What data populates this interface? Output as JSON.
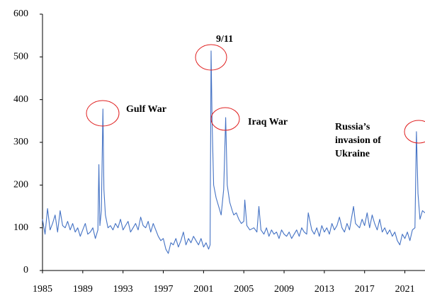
{
  "chart_data": {
    "type": "line",
    "x": [
      1985,
      1985.25,
      1985.5,
      1985.75,
      1986,
      1986.25,
      1986.5,
      1986.75,
      1987,
      1987.25,
      1987.5,
      1987.75,
      1988,
      1988.25,
      1988.5,
      1988.75,
      1989,
      1989.25,
      1989.5,
      1989.75,
      1990,
      1990.25,
      1990.5,
      1990.6,
      1990.7,
      1990.85,
      1991.0,
      1991.1,
      1991.25,
      1991.5,
      1991.75,
      1992,
      1992.25,
      1992.5,
      1992.75,
      1993,
      1993.25,
      1993.5,
      1993.75,
      1994,
      1994.25,
      1994.5,
      1994.75,
      1995,
      1995.25,
      1995.5,
      1995.75,
      1996,
      1996.25,
      1996.5,
      1996.75,
      1997,
      1997.25,
      1997.5,
      1997.75,
      1998,
      1998.25,
      1998.5,
      1998.75,
      1999,
      1999.25,
      1999.5,
      1999.75,
      2000,
      2000.25,
      2000.5,
      2000.75,
      2001,
      2001.25,
      2001.5,
      2001.65,
      2001.75,
      2001.85,
      2002,
      2002.25,
      2002.5,
      2002.75,
      2003,
      2003.2,
      2003.35,
      2003.6,
      2003.85,
      2004,
      2004.25,
      2004.5,
      2004.75,
      2005,
      2005.1,
      2005.3,
      2005.6,
      2006,
      2006.3,
      2006.5,
      2006.7,
      2007,
      2007.25,
      2007.5,
      2007.75,
      2008,
      2008.25,
      2008.5,
      2008.75,
      2009,
      2009.25,
      2009.5,
      2009.75,
      2010,
      2010.25,
      2010.5,
      2010.75,
      2011,
      2011.25,
      2011.4,
      2011.75,
      2012,
      2012.25,
      2012.5,
      2012.75,
      2013,
      2013.25,
      2013.5,
      2013.75,
      2014,
      2014.25,
      2014.5,
      2014.75,
      2015,
      2015.25,
      2015.5,
      2015.9,
      2016.1,
      2016.5,
      2016.75,
      2017,
      2017.25,
      2017.5,
      2017.75,
      2018,
      2018.25,
      2018.5,
      2018.75,
      2019,
      2019.25,
      2019.5,
      2019.75,
      2020,
      2020.25,
      2020.5,
      2020.75,
      2021,
      2021.25,
      2021.5,
      2021.75,
      2022,
      2022.15,
      2022.3,
      2022.5,
      2022.75,
      2023
    ],
    "series": [
      {
        "color": "#4472c4",
        "values": [
          120,
          85,
          145,
          95,
          110,
          130,
          90,
          140,
          105,
          100,
          115,
          95,
          110,
          90,
          100,
          80,
          95,
          110,
          85,
          90,
          100,
          75,
          95,
          248,
          105,
          140,
          378,
          190,
          130,
          100,
          105,
          95,
          110,
          100,
          120,
          95,
          105,
          115,
          90,
          100,
          110,
          95,
          125,
          105,
          100,
          115,
          90,
          110,
          95,
          80,
          70,
          75,
          50,
          40,
          65,
          60,
          75,
          55,
          70,
          90,
          60,
          75,
          65,
          80,
          70,
          60,
          75,
          55,
          65,
          50,
          60,
          514,
          350,
          200,
          170,
          150,
          130,
          190,
          358,
          200,
          160,
          140,
          130,
          135,
          120,
          110,
          115,
          165,
          105,
          95,
          100,
          90,
          150,
          95,
          85,
          100,
          80,
          95,
          85,
          90,
          75,
          95,
          85,
          80,
          90,
          75,
          85,
          95,
          80,
          100,
          90,
          85,
          135,
          95,
          85,
          100,
          80,
          105,
          90,
          100,
          85,
          110,
          95,
          105,
          125,
          100,
          90,
          110,
          95,
          150,
          110,
          100,
          120,
          105,
          135,
          100,
          130,
          110,
          95,
          120,
          90,
          100,
          85,
          95,
          80,
          90,
          70,
          60,
          85,
          75,
          90,
          70,
          95,
          100,
          325,
          180,
          120,
          140,
          135
        ]
      }
    ],
    "xlim": [
      1985,
      2023
    ],
    "xticks": [
      1985,
      1989,
      1993,
      1997,
      2001,
      2005,
      2009,
      2013,
      2017,
      2021
    ],
    "ylim": [
      0,
      600
    ],
    "yticks": [
      0,
      100,
      200,
      300,
      400,
      500,
      600
    ],
    "annotations": [
      [
        "Gulf War"
      ],
      [
        "9/11"
      ],
      [
        "Iraq War"
      ],
      [
        "Russia’s",
        "invasion of",
        "Ukraine"
      ]
    ],
    "annotation_color": "#e02020"
  }
}
